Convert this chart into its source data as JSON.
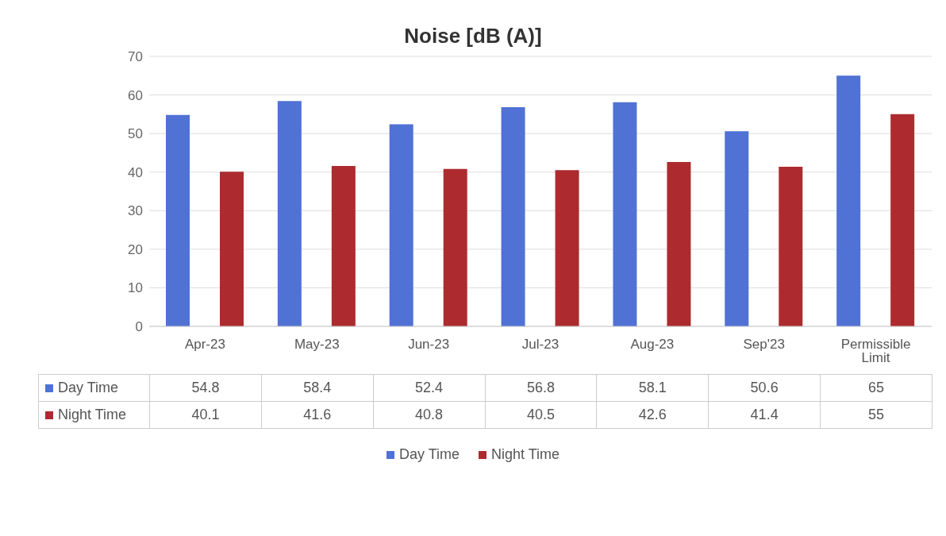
{
  "chart_data": {
    "type": "bar",
    "title": "Noise [dB (A)]",
    "categories": [
      "Apr-23",
      "May-23",
      "Jun-23",
      "Jul-23",
      "Aug-23",
      "Sep'23",
      "Permissible Limit"
    ],
    "series": [
      {
        "name": "Day Time",
        "color": "#4f72d4",
        "values": [
          54.8,
          58.4,
          52.4,
          56.8,
          58.1,
          50.6,
          65
        ]
      },
      {
        "name": "Night Time",
        "color": "#ad2b2f",
        "values": [
          40.1,
          41.6,
          40.8,
          40.5,
          42.6,
          41.4,
          55
        ]
      }
    ],
    "ylim": [
      0,
      70
    ],
    "yticks": [
      0,
      10,
      20,
      30,
      40,
      50,
      60,
      70
    ],
    "grid": "y",
    "legend": "bottom",
    "data_labels": true
  }
}
